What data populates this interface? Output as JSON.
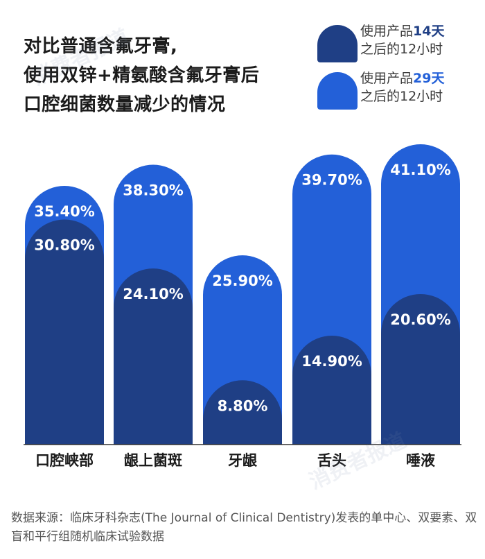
{
  "title_lines": [
    "对比普通含氟牙膏,",
    "使用双锌+精氨酸含氟牙膏后",
    "口腔细菌数量减少的情况"
  ],
  "legend": [
    {
      "line1_prefix": "使用产品",
      "line1_highlight": "14天",
      "line2": "之后的12小时",
      "color": "#1f3f85"
    },
    {
      "line1_prefix": "使用产品",
      "line1_highlight": "29天",
      "line2": "之后的12小时",
      "color": "#2360d8"
    }
  ],
  "chart_data": {
    "type": "bar",
    "categories": [
      "口腔峡部",
      "龈上菌斑",
      "牙龈",
      "舌头",
      "唾液"
    ],
    "series": [
      {
        "name": "使用产品14天之后的12小时",
        "values": [
          30.8,
          24.1,
          8.8,
          14.9,
          20.6
        ],
        "labels": [
          "30.80%",
          "24.10%",
          "8.80%",
          "14.90%",
          "20.60%"
        ]
      },
      {
        "name": "使用产品29天之后的12小时",
        "values": [
          35.4,
          38.3,
          25.9,
          39.7,
          41.1
        ],
        "labels": [
          "35.40%",
          "38.30%",
          "25.90%",
          "39.70%",
          "41.10%"
        ]
      }
    ],
    "ylim": [
      0,
      41.1
    ],
    "overlapping": true
  },
  "colors": {
    "dark": "#1f3f85",
    "light": "#2360d8",
    "axis": "#333333"
  },
  "watermark": "消费者报道",
  "source": "数据来源：临床牙科杂志(The Journal of Clinical Dentistry)发表的单中心、双要素、双盲和平行组随机临床试验数据"
}
